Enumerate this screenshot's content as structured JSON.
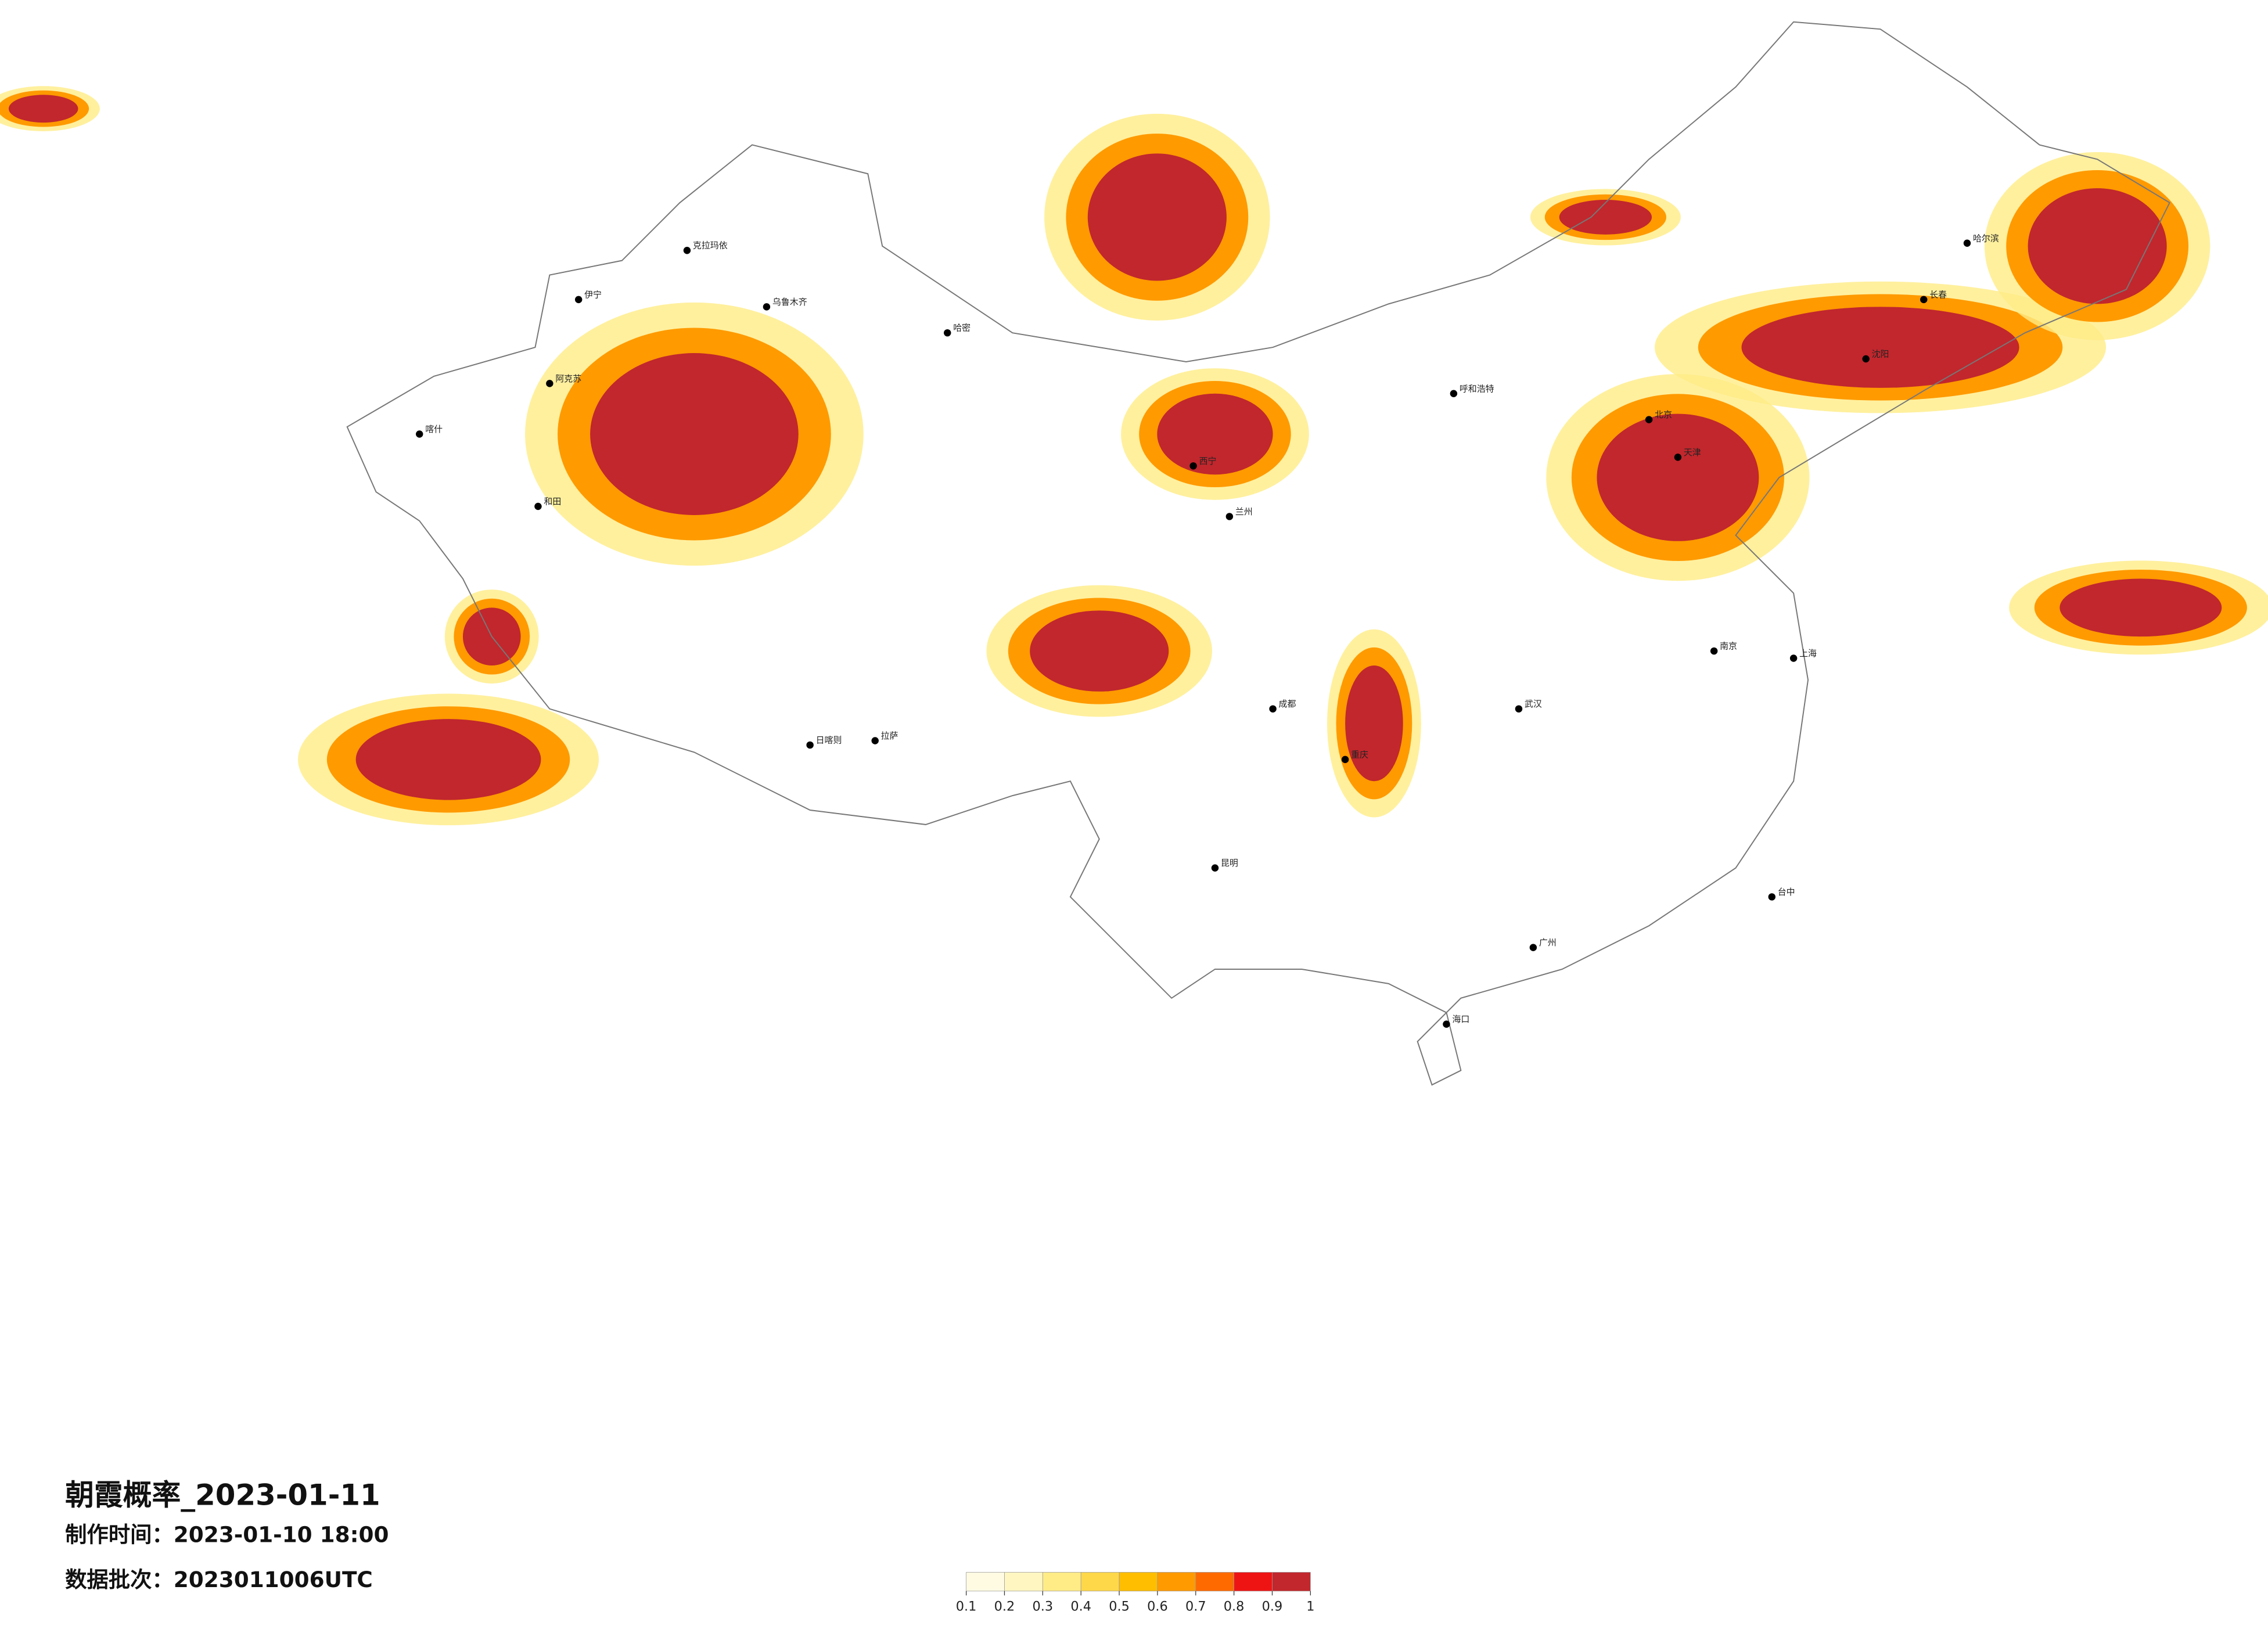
{
  "title": "朝霞概率_2023-01-11",
  "made_time": "制作时间：2023-01-10 18:00",
  "batch": "数据批次：2023011006UTC",
  "legend": {
    "ticks": [
      0.1,
      0.2,
      0.3,
      0.4,
      0.5,
      0.6,
      0.7,
      0.8,
      0.9,
      1
    ],
    "colors": [
      "#fffbe3",
      "#fff6c2",
      "#ffec86",
      "#ffd84a",
      "#ffbe00",
      "#ff9a00",
      "#ff6a00",
      "#ee1414",
      "#c1272d"
    ]
  },
  "cities": [
    "乌鲁木齐",
    "克拉玛依",
    "伊宁",
    "阿克苏",
    "喀什",
    "和田",
    "哈密",
    "拉萨",
    "日喀则",
    "西宁",
    "兰州",
    "呼和浩特",
    "哈尔滨",
    "长春",
    "沈阳",
    "北京",
    "天津",
    "上海",
    "南京",
    "武汉",
    "成都",
    "重庆",
    "昆明",
    "广州",
    "海口",
    "台中"
  ]
}
